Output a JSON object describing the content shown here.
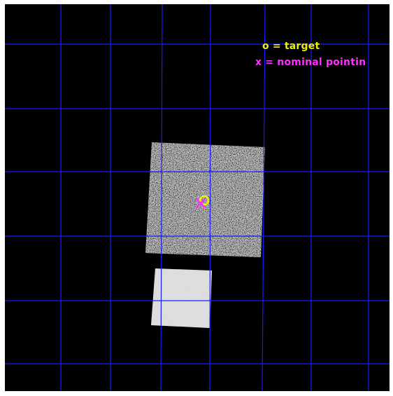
{
  "legend": {
    "target_label": "o = target",
    "pointing_label": "x = nominal pointin"
  },
  "colors": {
    "background": "#000000",
    "grid": "#1a1aff",
    "target_marker": "#f0f000",
    "pointing_marker": "#ff2fff",
    "detector": "#bdbdbd",
    "detector_bright": "#e4e4e4"
  },
  "markers": {
    "target_symbol": "o",
    "pointing_symbol": "x"
  }
}
